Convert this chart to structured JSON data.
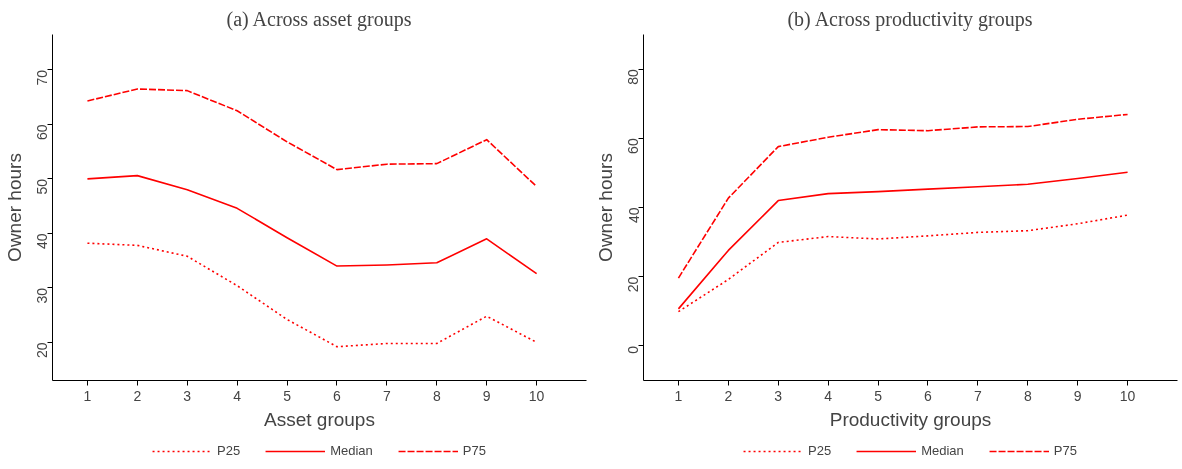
{
  "chart_data": [
    {
      "type": "line",
      "title": "(a) Across asset groups",
      "xlabel": "Asset groups",
      "ylabel": "Owner hours",
      "x": [
        1,
        2,
        3,
        4,
        5,
        6,
        7,
        8,
        9,
        10
      ],
      "xlim": [
        0.3,
        11
      ],
      "xticks": [
        1,
        2,
        3,
        4,
        5,
        6,
        7,
        8,
        9,
        10
      ],
      "ylim": [
        13,
        76.5
      ],
      "yticks": [
        20,
        30,
        40,
        50,
        60,
        70
      ],
      "grid": false,
      "legend": "bottom",
      "series": [
        {
          "name": "P25",
          "color": "#ff0000",
          "line_style": "dotted",
          "values": [
            38.2,
            37.8,
            35.8,
            30.4,
            24.2,
            19.2,
            19.8,
            19.8,
            24.8,
            20
          ]
        },
        {
          "name": "Median",
          "color": "#ff0000",
          "line_style": "solid",
          "values": [
            50,
            50.6,
            48,
            44.6,
            39.2,
            34,
            34.2,
            34.6,
            39,
            32.6
          ]
        },
        {
          "name": "P75",
          "color": "#ff0000",
          "line_style": "dashed",
          "values": [
            64.3,
            66.5,
            66.2,
            62.5,
            56.8,
            51.7,
            52.7,
            52.8,
            57.2,
            48.6
          ]
        }
      ]
    },
    {
      "type": "line",
      "title": "(b) Across productivity groups",
      "xlabel": "Productivity groups",
      "ylabel": "Owner hours",
      "x": [
        1,
        2,
        3,
        4,
        5,
        6,
        7,
        8,
        9,
        10
      ],
      "xlim": [
        0.3,
        11
      ],
      "xticks": [
        1,
        2,
        3,
        4,
        5,
        6,
        7,
        8,
        9,
        10
      ],
      "ylim": [
        -10,
        90
      ],
      "yticks": [
        0,
        20,
        40,
        60,
        80
      ],
      "grid": false,
      "legend": "bottom",
      "series": [
        {
          "name": "P25",
          "color": "#ff0000",
          "line_style": "dotted",
          "values": [
            9.9,
            19.2,
            29.9,
            31.6,
            30.9,
            31.8,
            32.8,
            33.3,
            35.3,
            37.8
          ]
        },
        {
          "name": "Median",
          "color": "#ff0000",
          "line_style": "solid",
          "values": [
            10.7,
            27.6,
            42,
            44,
            44.6,
            45.3,
            46,
            46.7,
            48.4,
            50.2
          ]
        },
        {
          "name": "P75",
          "color": "#ff0000",
          "line_style": "dashed",
          "values": [
            19.6,
            42.7,
            57.6,
            60.3,
            62.5,
            62.2,
            63.3,
            63.4,
            65.5,
            66.9
          ]
        }
      ]
    }
  ]
}
